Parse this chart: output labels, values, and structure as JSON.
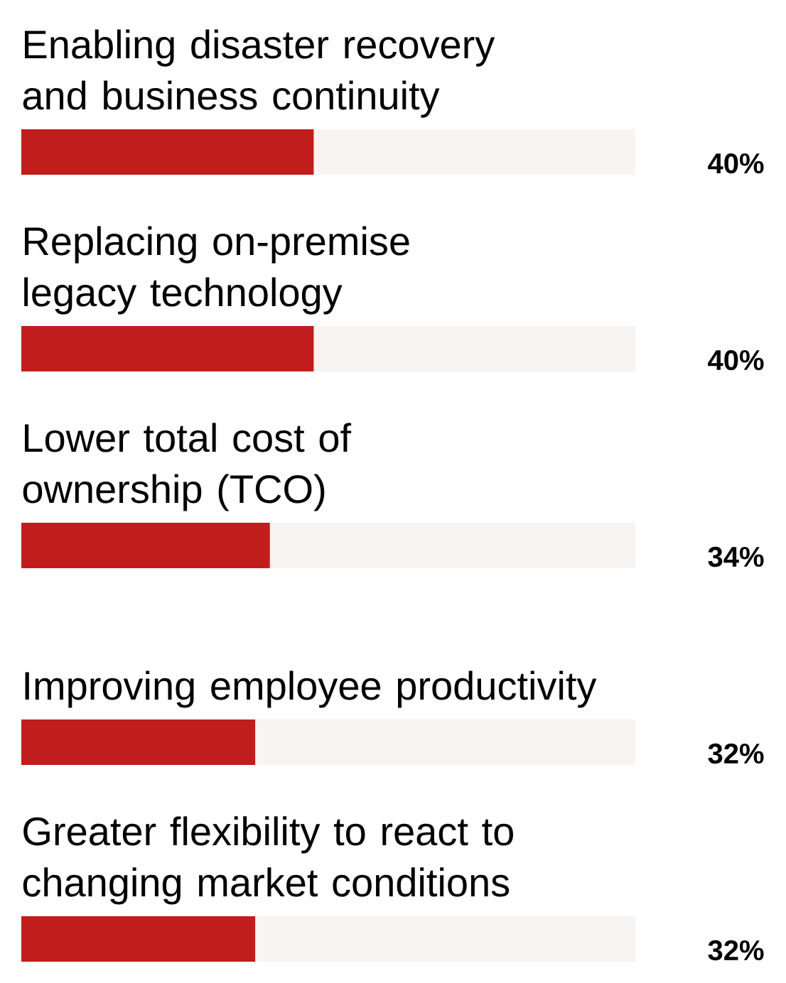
{
  "chart_data": {
    "type": "bar",
    "orientation": "horizontal",
    "categories": [
      "Enabling disaster recovery\nand business continuity",
      "Replacing on-premise\nlegacy technology",
      "Lower total cost of\nownership (TCO)",
      "Improving employee productivity",
      "Greater flexibility to react to\nchanging market conditions"
    ],
    "values": [
      40,
      40,
      34,
      32,
      32
    ],
    "value_labels": [
      "40%",
      "40%",
      "34%",
      "32%",
      "32%"
    ],
    "color": "#c21d1d",
    "xlim": [
      0,
      84
    ]
  }
}
